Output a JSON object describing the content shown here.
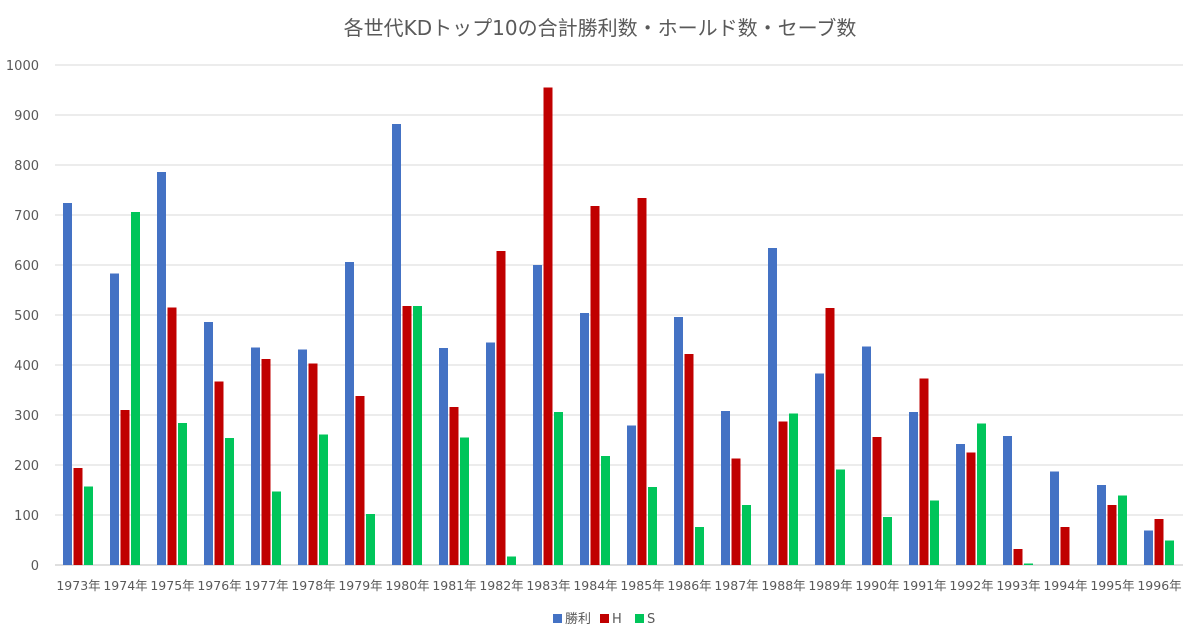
{
  "chart_data": {
    "type": "bar",
    "title": "各世代KDトップ10の合計勝利数・ホールド数・セーブ数",
    "xlabel": "",
    "ylabel": "",
    "ylim": [
      0,
      1000
    ],
    "yticks": [
      0,
      100,
      200,
      300,
      400,
      500,
      600,
      700,
      800,
      900,
      1000
    ],
    "grid": true,
    "legend_position": "bottom",
    "categories": [
      "1973年",
      "1974年",
      "1975年",
      "1976年",
      "1977年",
      "1978年",
      "1979年",
      "1980年",
      "1981年",
      "1982年",
      "1983年",
      "1984年",
      "1985年",
      "1986年",
      "1987年",
      "1988年",
      "1989年",
      "1990年",
      "1991年",
      "1992年",
      "1993年",
      "1994年",
      "1995年",
      "1996年"
    ],
    "series": [
      {
        "name": "勝利",
        "color": "#4472c4",
        "values": [
          724,
          583,
          786,
          486,
          435,
          431,
          606,
          882,
          434,
          445,
          600,
          504,
          279,
          496,
          308,
          634,
          383,
          437,
          306,
          242,
          258,
          187,
          160,
          69
        ]
      },
      {
        "name": "H",
        "color": "#c00000",
        "values": [
          194,
          310,
          515,
          367,
          412,
          403,
          338,
          518,
          316,
          628,
          955,
          718,
          734,
          422,
          213,
          287,
          514,
          256,
          373,
          225,
          32,
          76,
          120,
          92
        ]
      },
      {
        "name": "S",
        "color": "#00c55a",
        "values": [
          157,
          706,
          284,
          254,
          147,
          261,
          102,
          518,
          255,
          17,
          306,
          218,
          156,
          76,
          120,
          303,
          191,
          96,
          129,
          283,
          3,
          0,
          139,
          49
        ]
      }
    ]
  }
}
